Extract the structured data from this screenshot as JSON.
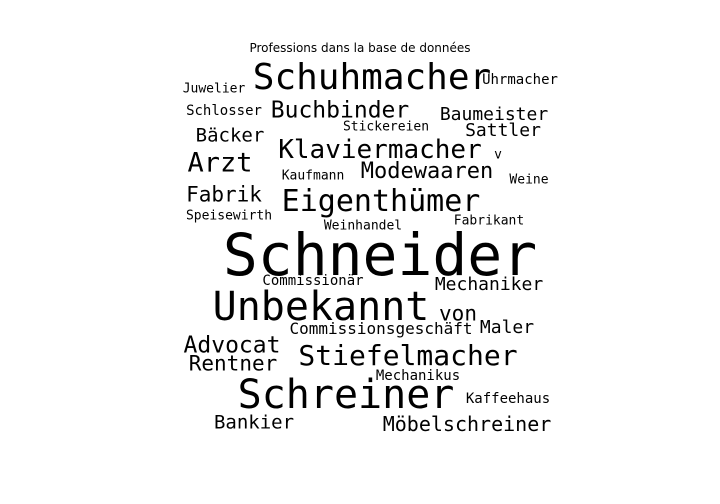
{
  "title": "Professions dans la base de données",
  "text_color": "#000000",
  "background_color": "#ffffff",
  "words": [
    "Schneider",
    "Unbekannt",
    "Schreiner",
    "Schuhmacher",
    "Stiefelmacher",
    "Eigenthümer",
    "Klaviermacher",
    "Arzt",
    "Buchbinder",
    "Modewaaren",
    "Advocat",
    "Rentner",
    "Fabrik",
    "Möbelschreiner",
    "Baumeister",
    "von",
    "Bankier",
    "Mechaniker",
    "Bäcker",
    "Sattler",
    "Maler",
    "Commissionsgeschäft",
    "Juwelier",
    "Schlosser",
    "Uhrmacher",
    "Speisewirth",
    "Kaffeehaus",
    "Stickereien",
    "Kaufmann",
    "Weine",
    "Fabrikant",
    "Weinhandel",
    "Commissionär",
    "Mechanikus",
    "v"
  ]
}
